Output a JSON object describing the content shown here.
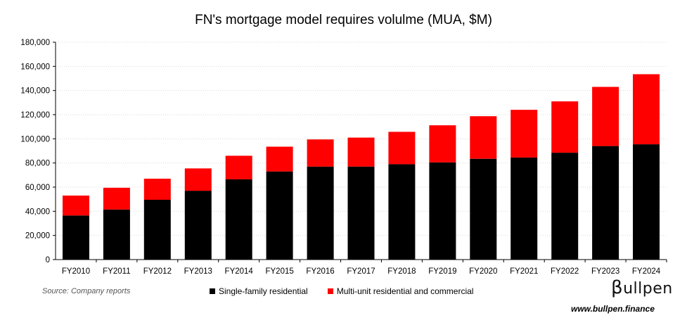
{
  "chart_data": {
    "type": "bar",
    "stacked": true,
    "title": "FN's mortgage model requires volulme (MUA, $M)",
    "xlabel": "",
    "ylabel": "",
    "categories": [
      "FY2010",
      "FY2011",
      "FY2012",
      "FY2013",
      "FY2014",
      "FY2015",
      "FY2016",
      "FY2017",
      "FY2018",
      "FY2019",
      "FY2020",
      "FY2021",
      "FY2022",
      "FY2023",
      "FY2024"
    ],
    "series": [
      {
        "name": "Single-family residential",
        "color": "#000000",
        "values": [
          36500,
          41500,
          49500,
          57000,
          66500,
          73000,
          77000,
          77000,
          79000,
          80500,
          83500,
          84500,
          88500,
          94000,
          95500
        ]
      },
      {
        "name": "Multi-unit residential and commercial",
        "color": "#ff0000",
        "values": [
          16500,
          18000,
          17500,
          18500,
          19500,
          20500,
          22500,
          24000,
          26800,
          30700,
          35200,
          39500,
          42500,
          49000,
          58000
        ]
      }
    ],
    "ylim": [
      0,
      180000
    ],
    "yticks": [
      0,
      20000,
      40000,
      60000,
      80000,
      100000,
      120000,
      140000,
      160000,
      180000
    ],
    "ytick_labels": [
      "0",
      "20,000",
      "40,000",
      "60,000",
      "80,000",
      "100,000",
      "120,000",
      "140,000",
      "160,000",
      "180,000"
    ],
    "grid": true,
    "legend_position": "bottom"
  },
  "footer": {
    "source": "Source: Company reports",
    "logo_beta": "β",
    "logo_rest": "ullpen",
    "website": "www.bullpen.finance"
  }
}
